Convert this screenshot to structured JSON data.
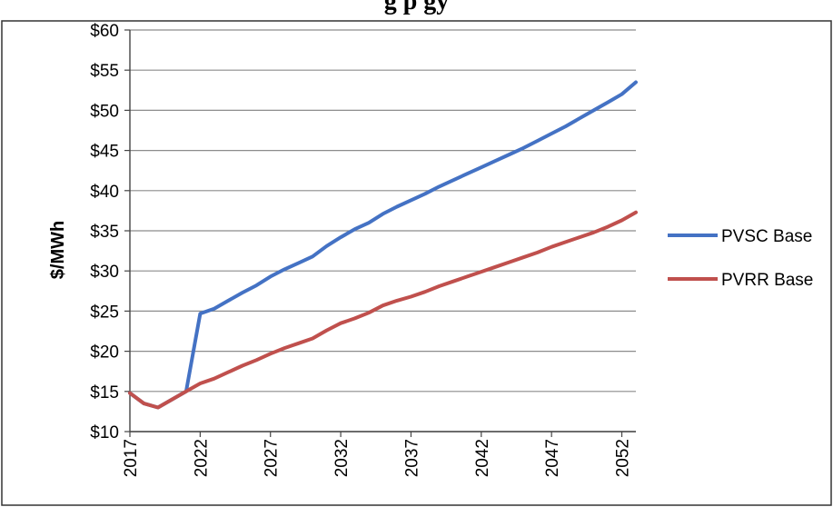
{
  "top_partial_text": "g           p     gy",
  "chart_data": {
    "type": "line",
    "title": "",
    "xlabel": "",
    "ylabel": "$/MWh",
    "xlim": [
      2017,
      2053
    ],
    "ylim": [
      10,
      60
    ],
    "y_ticks": [
      10,
      15,
      20,
      25,
      30,
      35,
      40,
      45,
      50,
      55,
      60
    ],
    "y_tick_labels": [
      "$10",
      "$15",
      "$20",
      "$25",
      "$30",
      "$35",
      "$40",
      "$45",
      "$50",
      "$55",
      "$60"
    ],
    "x_ticks": [
      2017,
      2022,
      2027,
      2032,
      2037,
      2042,
      2047,
      2052
    ],
    "x_tick_labels": [
      "2017",
      "2022",
      "2027",
      "2032",
      "2037",
      "2042",
      "2047",
      "2052"
    ],
    "grid": "horizontal",
    "legend_position": "right",
    "x": [
      2017,
      2018,
      2019,
      2020,
      2021,
      2022,
      2023,
      2024,
      2025,
      2026,
      2027,
      2028,
      2029,
      2030,
      2031,
      2032,
      2033,
      2034,
      2035,
      2036,
      2037,
      2038,
      2039,
      2040,
      2041,
      2042,
      2043,
      2044,
      2045,
      2046,
      2047,
      2048,
      2049,
      2050,
      2051,
      2052,
      2053
    ],
    "series": [
      {
        "name": "PVSC Base",
        "color": "#4472c4",
        "values": [
          14.8,
          13.5,
          13.0,
          14.0,
          15.0,
          24.7,
          25.3,
          26.3,
          27.3,
          28.2,
          29.3,
          30.2,
          31.0,
          31.8,
          33.1,
          34.2,
          35.2,
          36.0,
          37.1,
          38.0,
          38.8,
          39.6,
          40.5,
          41.3,
          42.1,
          42.9,
          43.7,
          44.5,
          45.3,
          46.2,
          47.1,
          48.0,
          49.0,
          50.0,
          51.0,
          52.0,
          53.5
        ]
      },
      {
        "name": "PVRR Base",
        "color": "#c0504d",
        "values": [
          14.8,
          13.5,
          13.0,
          14.0,
          15.0,
          16.0,
          16.6,
          17.4,
          18.2,
          18.9,
          19.7,
          20.4,
          21.0,
          21.6,
          22.6,
          23.5,
          24.1,
          24.8,
          25.7,
          26.3,
          26.8,
          27.4,
          28.1,
          28.7,
          29.3,
          29.9,
          30.5,
          31.1,
          31.7,
          32.3,
          33.0,
          33.6,
          34.2,
          34.8,
          35.5,
          36.3,
          37.3
        ]
      }
    ]
  }
}
